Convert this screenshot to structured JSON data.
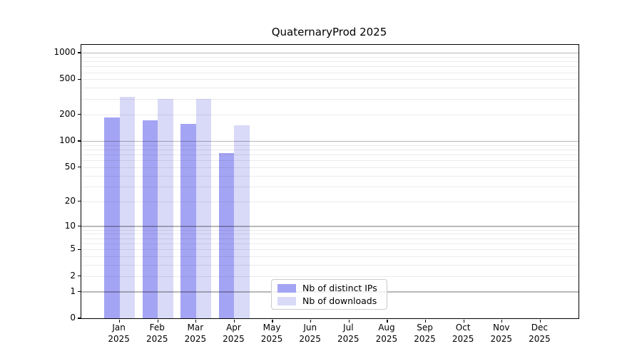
{
  "chart_data": {
    "type": "bar",
    "title": "QuaternaryProd 2025",
    "x_tick_months": [
      "Jan",
      "Feb",
      "Mar",
      "Apr",
      "May",
      "Jun",
      "Jul",
      "Aug",
      "Sep",
      "Oct",
      "Nov",
      "Dec"
    ],
    "x_tick_year": "2025",
    "y_ticks": [
      0,
      1,
      2,
      5,
      10,
      20,
      50,
      100,
      200,
      500,
      1000
    ],
    "y_scale": "log1p",
    "ylim": [
      0,
      1228
    ],
    "grid": {
      "enabled": true,
      "major_values": [
        1,
        10,
        100,
        1000
      ],
      "minor_decades": [
        1,
        10,
        100
      ]
    },
    "legend_position": "bottom-center",
    "series": [
      {
        "name": "Nb of distinct IPs",
        "color": "#a4a4f4",
        "values": [
          185,
          170,
          155,
          72,
          null,
          null,
          null,
          null,
          null,
          null,
          null,
          null
        ]
      },
      {
        "name": "Nb of downloads",
        "color": "#d9d9f8",
        "values": [
          315,
          298,
          302,
          150,
          null,
          null,
          null,
          null,
          null,
          null,
          null,
          null
        ]
      }
    ],
    "colors": {
      "major_grid": "rgba(0,0,0,0.28)",
      "minor_grid": "rgba(0,0,0,0.08)",
      "spine": "#000000",
      "background": "#ffffff"
    }
  }
}
